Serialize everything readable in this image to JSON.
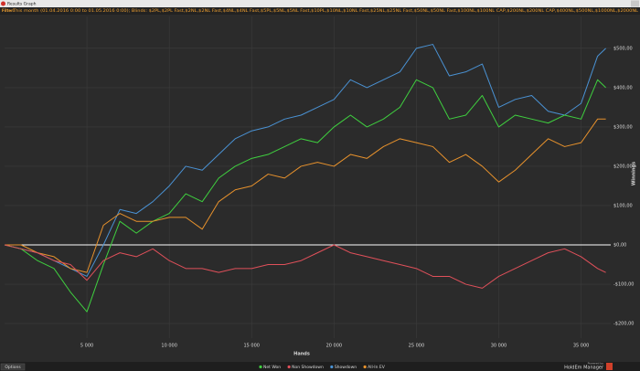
{
  "window": {
    "title": "Results Graph"
  },
  "filter": {
    "label": "Filter:",
    "text": "This month (01.04.2016 0:00 to 01.05.2016 0:00); Blinds: $2PL,$2PL Fast,$2NL,$2NL Fast,$4NL,$4NL Fast,$5PL,$5NL,$5NL Fast,$10PL,$10NL,$10NL Fast,$25NL,$25NL Fast,$50NL,$50NL Fast,$100NL,$100NL CAP,$200NL,$200NL CAP,$400NL,$500NL,$1000NL,$2000NL"
  },
  "options_button": "Options",
  "branding": {
    "powered_by": "Powered by",
    "name": "HoldEm Manager"
  },
  "chart_data": {
    "type": "line",
    "xlabel": "Hands",
    "ylabel": "Winnings",
    "x": [
      0,
      1000,
      2000,
      3000,
      4000,
      5000,
      6000,
      7000,
      8000,
      9000,
      10000,
      11000,
      12000,
      13000,
      14000,
      15000,
      16000,
      17000,
      18000,
      19000,
      20000,
      21000,
      22000,
      23000,
      24000,
      25000,
      26000,
      27000,
      28000,
      29000,
      30000,
      31000,
      32000,
      33000,
      34000,
      35000,
      36000,
      36500
    ],
    "series": [
      {
        "name": "Net Won",
        "color": "#3fd03f",
        "values": [
          0,
          -10,
          -40,
          -60,
          -120,
          -170,
          -50,
          60,
          30,
          60,
          80,
          130,
          110,
          170,
          200,
          220,
          230,
          250,
          270,
          260,
          300,
          330,
          300,
          320,
          350,
          420,
          400,
          320,
          330,
          380,
          300,
          330,
          320,
          310,
          330,
          320,
          420,
          400
        ]
      },
      {
        "name": "Non Showdown",
        "color": "#e0505a",
        "values": [
          0,
          -10,
          -20,
          -40,
          -50,
          -90,
          -40,
          -20,
          -30,
          -10,
          -40,
          -60,
          -60,
          -70,
          -60,
          -60,
          -50,
          -50,
          -40,
          -20,
          0,
          -20,
          -30,
          -40,
          -50,
          -60,
          -80,
          -80,
          -100,
          -110,
          -80,
          -60,
          -40,
          -20,
          -10,
          -30,
          -60,
          -70
        ]
      },
      {
        "name": "Showdown",
        "color": "#4a92d4",
        "values": [
          0,
          -10,
          -20,
          -40,
          -60,
          -80,
          0,
          90,
          80,
          110,
          150,
          200,
          190,
          230,
          270,
          290,
          300,
          320,
          330,
          350,
          370,
          420,
          400,
          420,
          440,
          500,
          510,
          430,
          440,
          460,
          350,
          370,
          380,
          340,
          330,
          360,
          480,
          500
        ]
      },
      {
        "name": "All-In EV",
        "color": "#e8922c",
        "values": [
          0,
          0,
          -20,
          -30,
          -60,
          -70,
          50,
          80,
          60,
          60,
          70,
          70,
          40,
          110,
          140,
          150,
          180,
          170,
          200,
          210,
          200,
          230,
          220,
          250,
          270,
          260,
          250,
          210,
          230,
          200,
          160,
          190,
          230,
          270,
          250,
          260,
          320,
          320
        ]
      }
    ],
    "xlim": [
      0,
      36800
    ],
    "ylim": [
      -237,
      581
    ],
    "xticks": [
      {
        "value": 5000,
        "label": "5 000"
      },
      {
        "value": 10000,
        "label": "10 000"
      },
      {
        "value": 15000,
        "label": "15 000"
      },
      {
        "value": 20000,
        "label": "20 000"
      },
      {
        "value": 25000,
        "label": "25 000"
      },
      {
        "value": 30000,
        "label": "30 000"
      },
      {
        "value": 35000,
        "label": "35 000"
      }
    ],
    "yticks": [
      {
        "value": -200,
        "label": "-$200,00"
      },
      {
        "value": -100,
        "label": "-$100,00"
      },
      {
        "value": 0,
        "label": "$0,00"
      },
      {
        "value": 100,
        "label": "$100,00"
      },
      {
        "value": 200,
        "label": "$200,00"
      },
      {
        "value": 300,
        "label": "$300,00"
      },
      {
        "value": 400,
        "label": "$400,00"
      },
      {
        "value": 500,
        "label": "$500,00"
      }
    ],
    "grid": true,
    "zero_line": true,
    "legend": "bottom"
  }
}
